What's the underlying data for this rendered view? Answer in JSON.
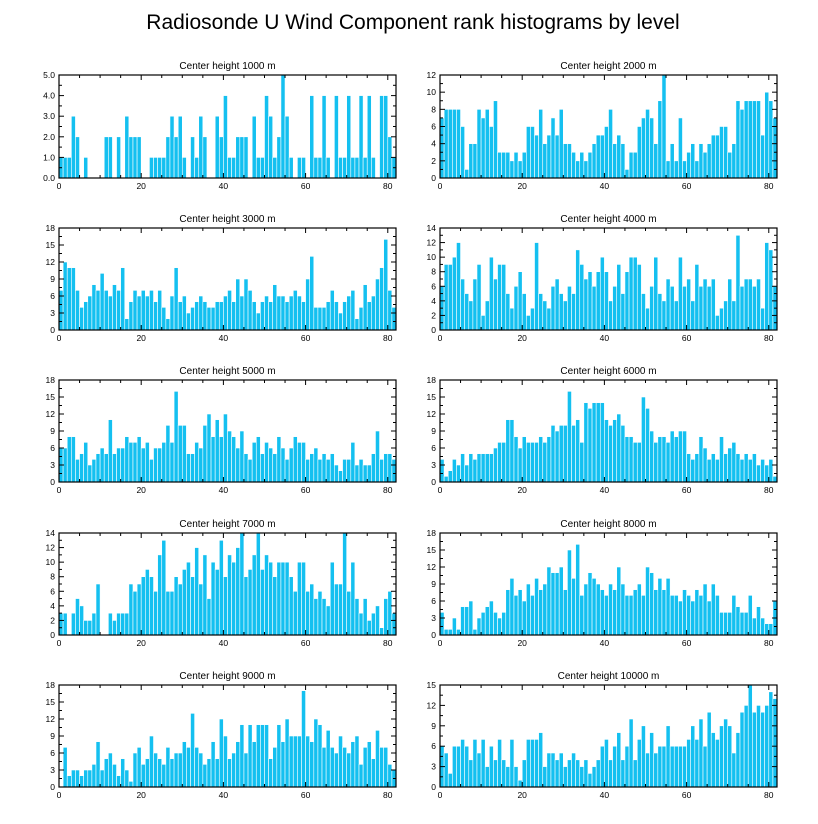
{
  "title": "Radiosonde U Wind Component rank histograms by level",
  "colors": {
    "bar": "#14c0f0",
    "bar_edge": "#ffffff",
    "axis": "#000000"
  },
  "chart_data": [
    {
      "type": "bar",
      "title": "Center height 1000 m",
      "xlim": [
        0,
        82
      ],
      "ylim": [
        0,
        5
      ],
      "xticks": [
        0,
        20,
        40,
        60,
        80
      ],
      "yticks": [
        0,
        1,
        2,
        3,
        4,
        5
      ],
      "xtick_labels": [
        "0",
        "20",
        "40",
        "60",
        "80"
      ],
      "ytick_labels": [
        "0.0",
        "1.0",
        "2.0",
        "3.0",
        "4.0",
        "5.0"
      ],
      "values": [
        1,
        1,
        1,
        3,
        2,
        0,
        1,
        0,
        0,
        0,
        0,
        2,
        2,
        0,
        2,
        0,
        3,
        2,
        2,
        2,
        0,
        0,
        1,
        1,
        1,
        1,
        2,
        3,
        2,
        3,
        1,
        0,
        2,
        1,
        3,
        2,
        0,
        0,
        3,
        2,
        4,
        1,
        1,
        2,
        2,
        2,
        0,
        3,
        1,
        1,
        4,
        3,
        1,
        2,
        5,
        3,
        1,
        0,
        1,
        1,
        0,
        4,
        1,
        1,
        4,
        1,
        0,
        4,
        1,
        1,
        4,
        1,
        1,
        4,
        1,
        4,
        1,
        0,
        4,
        4,
        2,
        1
      ]
    },
    {
      "type": "bar",
      "title": "Center height 2000 m",
      "xlim": [
        0,
        82
      ],
      "ylim": [
        0,
        12
      ],
      "xticks": [
        0,
        20,
        40,
        60,
        80
      ],
      "yticks": [
        0,
        2,
        4,
        6,
        8,
        10,
        12
      ],
      "xtick_labels": [
        "0",
        "20",
        "40",
        "60",
        "80"
      ],
      "ytick_labels": [
        "0",
        "2",
        "4",
        "6",
        "8",
        "10",
        "12"
      ],
      "values": [
        7,
        8,
        8,
        8,
        8,
        6,
        1,
        4,
        4,
        8,
        7,
        8,
        6,
        9,
        3,
        3,
        3,
        2,
        3,
        2,
        3,
        6,
        6,
        5,
        8,
        4,
        5,
        7,
        5,
        8,
        4,
        4,
        3,
        2,
        3,
        2,
        3,
        4,
        5,
        5,
        6,
        8,
        4,
        5,
        4,
        1,
        3,
        3,
        6,
        7,
        8,
        7,
        4,
        9,
        12,
        2,
        4,
        2,
        7,
        2,
        3,
        4,
        2,
        4,
        3,
        4,
        5,
        5,
        6,
        6,
        3,
        4,
        9,
        8,
        9,
        9,
        9,
        9,
        5,
        10,
        9,
        7
      ]
    },
    {
      "type": "bar",
      "title": "Center height 3000 m",
      "xlim": [
        0,
        82
      ],
      "ylim": [
        0,
        18
      ],
      "xticks": [
        0,
        20,
        40,
        60,
        80
      ],
      "yticks": [
        0,
        3,
        6,
        9,
        12,
        15,
        18
      ],
      "xtick_labels": [
        "0",
        "20",
        "40",
        "60",
        "80"
      ],
      "ytick_labels": [
        "0",
        "3",
        "6",
        "9",
        "12",
        "15",
        "18"
      ],
      "values": [
        7,
        12,
        11,
        11,
        7,
        4,
        5,
        6,
        8,
        7,
        10,
        7,
        6,
        8,
        7,
        11,
        2,
        5,
        7,
        6,
        7,
        6,
        7,
        5,
        7,
        4,
        2,
        6,
        11,
        5,
        6,
        3,
        4,
        5,
        6,
        5,
        4,
        4,
        5,
        5,
        6,
        7,
        5,
        9,
        6,
        9,
        7,
        5,
        3,
        5,
        6,
        5,
        8,
        6,
        6,
        5,
        6,
        7,
        6,
        5,
        9,
        13,
        4,
        4,
        4,
        5,
        7,
        5,
        3,
        5,
        6,
        7,
        2,
        4,
        8,
        5,
        6,
        9,
        11,
        16,
        7,
        4
      ]
    },
    {
      "type": "bar",
      "title": "Center height 4000 m",
      "xlim": [
        0,
        82
      ],
      "ylim": [
        0,
        14
      ],
      "xticks": [
        0,
        20,
        40,
        60,
        80
      ],
      "yticks": [
        0,
        2,
        4,
        6,
        8,
        10,
        12,
        14
      ],
      "xtick_labels": [
        "0",
        "20",
        "40",
        "60",
        "80"
      ],
      "ytick_labels": [
        "0",
        "2",
        "4",
        "6",
        "8",
        "10",
        "12",
        "14"
      ],
      "values": [
        6,
        9,
        9,
        10,
        12,
        7,
        5,
        4,
        7,
        9,
        2,
        4,
        10,
        7,
        9,
        9,
        5,
        3,
        6,
        8,
        5,
        2,
        3,
        12,
        5,
        4,
        3,
        6,
        7,
        5,
        4,
        6,
        5,
        11,
        9,
        7,
        8,
        6,
        8,
        10,
        8,
        4,
        6,
        9,
        5,
        8,
        10,
        10,
        9,
        5,
        3,
        6,
        10,
        5,
        4,
        7,
        6,
        4,
        10,
        6,
        7,
        4,
        9,
        6,
        7,
        6,
        7,
        2,
        3,
        4,
        7,
        4,
        13,
        6,
        7,
        7,
        6,
        7,
        3,
        12,
        11,
        6
      ]
    },
    {
      "type": "bar",
      "title": "Center height 5000 m",
      "xlim": [
        0,
        82
      ],
      "ylim": [
        0,
        18
      ],
      "xticks": [
        0,
        20,
        40,
        60,
        80
      ],
      "yticks": [
        0,
        3,
        6,
        9,
        12,
        15,
        18
      ],
      "xtick_labels": [
        "0",
        "20",
        "40",
        "60",
        "80"
      ],
      "ytick_labels": [
        "0",
        "3",
        "6",
        "9",
        "12",
        "15",
        "18"
      ],
      "values": [
        6,
        6,
        8,
        8,
        4,
        5,
        7,
        3,
        4,
        5,
        6,
        5,
        11,
        5,
        6,
        6,
        8,
        7,
        7,
        8,
        6,
        7,
        4,
        6,
        6,
        7,
        10,
        7,
        16,
        10,
        10,
        5,
        5,
        7,
        6,
        10,
        12,
        8,
        11,
        8,
        12,
        9,
        8,
        6,
        9,
        5,
        4,
        7,
        8,
        5,
        7,
        6,
        5,
        8,
        6,
        4,
        6,
        8,
        7,
        7,
        4,
        5,
        6,
        4,
        5,
        4,
        5,
        3,
        2,
        4,
        4,
        7,
        3,
        4,
        3,
        3,
        5,
        9,
        4,
        5,
        5,
        4
      ]
    },
    {
      "type": "bar",
      "title": "Center height 6000 m",
      "xlim": [
        0,
        82
      ],
      "ylim": [
        0,
        18
      ],
      "xticks": [
        0,
        20,
        40,
        60,
        80
      ],
      "yticks": [
        0,
        3,
        6,
        9,
        12,
        15,
        18
      ],
      "xtick_labels": [
        "0",
        "20",
        "40",
        "60",
        "80"
      ],
      "ytick_labels": [
        "0",
        "3",
        "6",
        "9",
        "12",
        "15",
        "18"
      ],
      "values": [
        4,
        1,
        2,
        4,
        3,
        5,
        3,
        5,
        4,
        5,
        5,
        5,
        5,
        6,
        7,
        7,
        11,
        11,
        8,
        6,
        8,
        7,
        7,
        7,
        8,
        7,
        8,
        10,
        9,
        10,
        10,
        16,
        10,
        11,
        7,
        14,
        13,
        14,
        14,
        14,
        11,
        10,
        11,
        12,
        10,
        8,
        8,
        7,
        7,
        15,
        13,
        9,
        7,
        8,
        8,
        7,
        9,
        8,
        9,
        9,
        5,
        4,
        5,
        8,
        6,
        4,
        5,
        4,
        8,
        5,
        6,
        7,
        5,
        4,
        5,
        4,
        5,
        3,
        4,
        3,
        4,
        1
      ]
    },
    {
      "type": "bar",
      "title": "Center height 7000 m",
      "xlim": [
        0,
        82
      ],
      "ylim": [
        0,
        14
      ],
      "xticks": [
        0,
        20,
        40,
        60,
        80
      ],
      "yticks": [
        0,
        2,
        4,
        6,
        8,
        10,
        12,
        14
      ],
      "xtick_labels": [
        "0",
        "20",
        "40",
        "60",
        "80"
      ],
      "ytick_labels": [
        "0",
        "2",
        "4",
        "6",
        "8",
        "10",
        "12",
        "14"
      ],
      "values": [
        3,
        3,
        0,
        3,
        5,
        4,
        2,
        2,
        3,
        7,
        0,
        0,
        3,
        2,
        3,
        3,
        3,
        7,
        6,
        7,
        8,
        9,
        8,
        6,
        11,
        13,
        6,
        6,
        8,
        7,
        9,
        10,
        8,
        12,
        7,
        11,
        5,
        10,
        9,
        13,
        8,
        11,
        10,
        12,
        14,
        8,
        9,
        11,
        14,
        9,
        11,
        10,
        8,
        10,
        10,
        10,
        8,
        6,
        10,
        10,
        6,
        7,
        5,
        6,
        5,
        4,
        10,
        7,
        7,
        14,
        6,
        10,
        5,
        3,
        5,
        2,
        3,
        4,
        1,
        5,
        6,
        3
      ]
    },
    {
      "type": "bar",
      "title": "Center height 8000 m",
      "xlim": [
        0,
        82
      ],
      "ylim": [
        0,
        18
      ],
      "xticks": [
        0,
        20,
        40,
        60,
        80
      ],
      "yticks": [
        0,
        3,
        6,
        9,
        12,
        15,
        18
      ],
      "xtick_labels": [
        "0",
        "20",
        "40",
        "60",
        "80"
      ],
      "ytick_labels": [
        "0",
        "3",
        "6",
        "9",
        "12",
        "15",
        "18"
      ],
      "values": [
        4,
        1,
        1,
        3,
        1,
        5,
        5,
        6,
        1,
        3,
        4,
        5,
        6,
        4,
        3,
        4,
        8,
        10,
        7,
        8,
        6,
        9,
        7,
        10,
        8,
        9,
        12,
        11,
        11,
        12,
        8,
        15,
        10,
        16,
        7,
        9,
        11,
        10,
        9,
        8,
        7,
        9,
        8,
        12,
        9,
        7,
        7,
        8,
        9,
        7,
        12,
        11,
        8,
        10,
        8,
        10,
        7,
        7,
        6,
        8,
        7,
        6,
        8,
        7,
        9,
        6,
        9,
        7,
        4,
        4,
        4,
        7,
        5,
        4,
        4,
        7,
        3,
        5,
        3,
        2,
        2,
        6
      ]
    },
    {
      "type": "bar",
      "title": "Center height 9000 m",
      "xlim": [
        0,
        82
      ],
      "ylim": [
        0,
        18
      ],
      "xticks": [
        0,
        20,
        40,
        60,
        80
      ],
      "yticks": [
        0,
        3,
        6,
        9,
        12,
        15,
        18
      ],
      "xtick_labels": [
        "0",
        "20",
        "40",
        "60",
        "80"
      ],
      "ytick_labels": [
        "0",
        "3",
        "6",
        "9",
        "12",
        "15",
        "18"
      ],
      "values": [
        0,
        7,
        2,
        3,
        3,
        2,
        3,
        3,
        4,
        8,
        3,
        5,
        6,
        4,
        2,
        5,
        3,
        1,
        6,
        7,
        4,
        5,
        9,
        6,
        5,
        4,
        7,
        5,
        6,
        6,
        8,
        7,
        13,
        7,
        6,
        4,
        5,
        8,
        5,
        12,
        9,
        5,
        6,
        8,
        11,
        6,
        11,
        8,
        11,
        11,
        11,
        5,
        7,
        11,
        8,
        12,
        9,
        9,
        9,
        17,
        9,
        8,
        12,
        11,
        7,
        10,
        7,
        6,
        9,
        7,
        6,
        8,
        9,
        4,
        7,
        8,
        5,
        10,
        7,
        7,
        4,
        3
      ]
    },
    {
      "type": "bar",
      "title": "Center height 10000 m",
      "xlim": [
        0,
        82
      ],
      "ylim": [
        0,
        15
      ],
      "xticks": [
        0,
        20,
        40,
        60,
        80
      ],
      "yticks": [
        0,
        3,
        6,
        9,
        12,
        15
      ],
      "xtick_labels": [
        "0",
        "20",
        "40",
        "60",
        "80"
      ],
      "ytick_labels": [
        "0",
        "3",
        "6",
        "9",
        "12",
        "15"
      ],
      "values": [
        6,
        5,
        2,
        6,
        6,
        7,
        6,
        4,
        7,
        5,
        7,
        3,
        6,
        4,
        7,
        4,
        3,
        7,
        3,
        1,
        4,
        7,
        7,
        7,
        8,
        3,
        5,
        5,
        4,
        5,
        3,
        4,
        5,
        4,
        3,
        4,
        2,
        3,
        4,
        6,
        7,
        4,
        6,
        8,
        4,
        6,
        10,
        4,
        7,
        9,
        5,
        8,
        5,
        6,
        6,
        9,
        6,
        6,
        6,
        6,
        7,
        9,
        7,
        10,
        6,
        11,
        8,
        7,
        9,
        10,
        9,
        5,
        8,
        11,
        12,
        15,
        11,
        12,
        11,
        12,
        14,
        13
      ]
    }
  ]
}
